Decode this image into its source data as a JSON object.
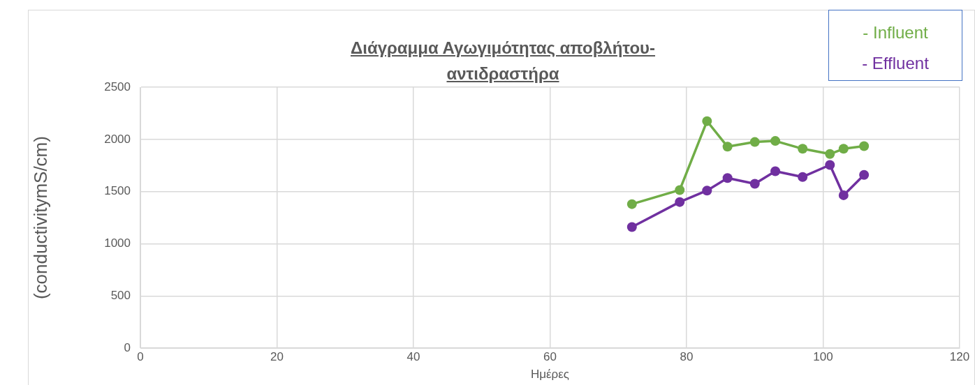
{
  "chart_data": {
    "type": "line",
    "title": "Διάγραμμα Αγωγιμότητας αποβλήτου-αντιδραστήρα",
    "xlabel": "Ημέρες",
    "ylabel": "(conductivitymS/cm)",
    "x": [
      72,
      79,
      83,
      86,
      90,
      93,
      97,
      101,
      103,
      106
    ],
    "series": [
      {
        "name": "- Influent",
        "color": "#70ad47",
        "values": [
          1380,
          1515,
          2175,
          1930,
          1975,
          1985,
          1910,
          1860,
          1910,
          1935
        ]
      },
      {
        "name": "- Effluent",
        "color": "#7030a0",
        "values": [
          1160,
          1400,
          1510,
          1630,
          1575,
          1695,
          1640,
          1755,
          1465,
          1660
        ]
      }
    ],
    "xlim": [
      0,
      120
    ],
    "xticks": [
      0,
      20,
      40,
      60,
      80,
      100,
      120
    ],
    "ylim": [
      0,
      2500
    ],
    "yticks": [
      0,
      500,
      1000,
      1500,
      2000,
      2500
    ],
    "grid": true,
    "legend": "top right",
    "marker": "circle",
    "line_style": "solid"
  }
}
